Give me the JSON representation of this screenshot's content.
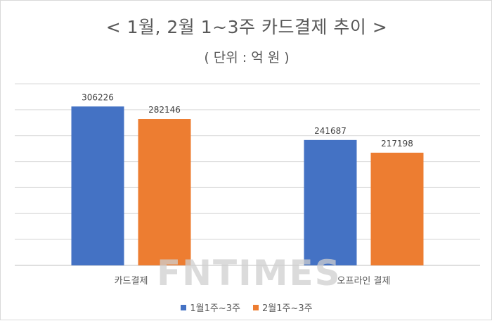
{
  "chart_data": {
    "type": "bar",
    "title": "< 1월, 2월 1~3주 카드결제 추이 >",
    "subtitle": "( 단위 : 억 원 )",
    "categories": [
      "카드결제",
      "오프라인 결제"
    ],
    "series": [
      {
        "name": "1월1주~3주",
        "values": [
          306226,
          241687
        ],
        "color": "#4472C4"
      },
      {
        "name": "2월1주~3주",
        "values": [
          282146,
          217198
        ],
        "color": "#ED7D31"
      }
    ],
    "ylim": [
      0,
      350000
    ],
    "grid": true,
    "legend_position": "bottom"
  },
  "watermark": "FNTIMES"
}
